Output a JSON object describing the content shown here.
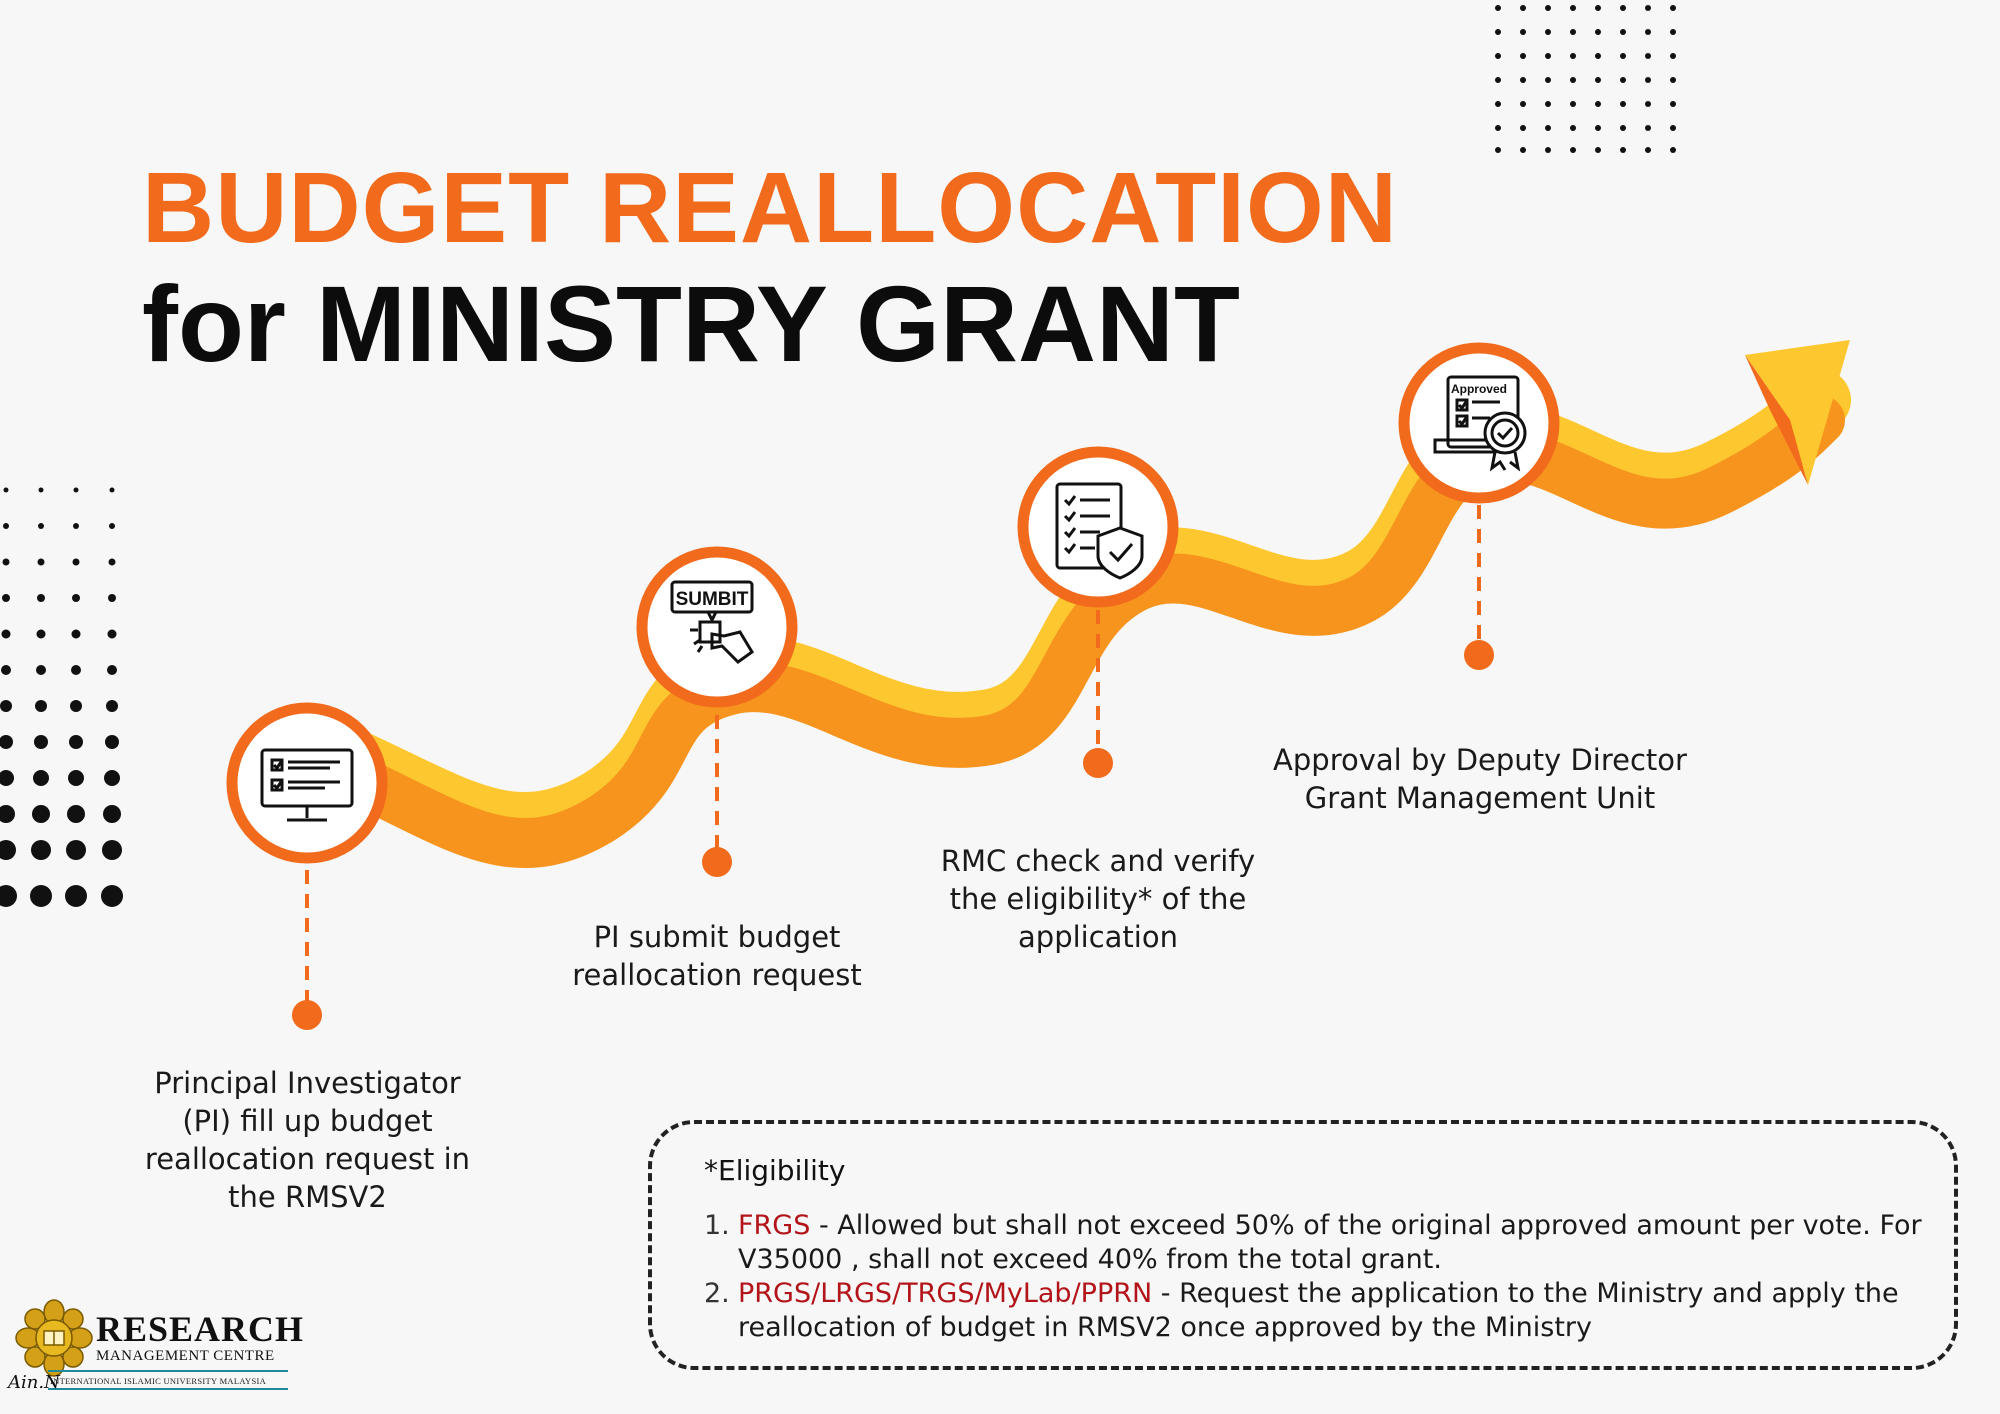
{
  "title": {
    "line1": "BUDGET REALLOCATION",
    "line2": "for MINISTRY GRANT"
  },
  "steps": [
    {
      "icon": "checklist-monitor-icon",
      "lines": [
        "Principal Investigator",
        "(PI) fill up budget",
        "reallocation request in",
        "the RMSV2"
      ]
    },
    {
      "icon": "submit-button-click-icon",
      "icon_text": "SUMBIT",
      "lines": [
        "PI submit budget",
        "reallocation request"
      ]
    },
    {
      "icon": "checklist-shield-icon",
      "lines": [
        "RMC check and verify",
        "the eligibility* of the",
        "application"
      ]
    },
    {
      "icon": "approved-certificate-icon",
      "icon_text": "Approved",
      "lines": [
        "Approval by Deputy Director",
        "Grant Management Unit"
      ]
    }
  ],
  "eligibility": {
    "heading": "*Eligibility",
    "items": [
      {
        "num": "1.",
        "code": "FRGS",
        "text": " - Allowed but shall not exceed 50% of the original approved amount per vote. For V35000 , shall not exceed 40% from the total grant."
      },
      {
        "num": "2.",
        "code": "PRGS/LRGS/TRGS/MyLab/PPRN",
        "text": " - Request the application to the Ministry and apply the reallocation of budget in RMSV2 once approved by the Ministry"
      }
    ]
  },
  "logo": {
    "title": "RESEARCH",
    "subtitle": "MANAGEMENT CENTRE",
    "university": "INTERNATIONAL ISLAMIC UNIVERSITY MALAYSIA"
  },
  "signature": "Ain.N",
  "colors": {
    "accent_orange": "#f26a1b",
    "wave_orange": "#f7941d",
    "wave_yellow": "#fdc82f",
    "circle_border": "#f26a1b",
    "code_red": "#b3141a"
  }
}
